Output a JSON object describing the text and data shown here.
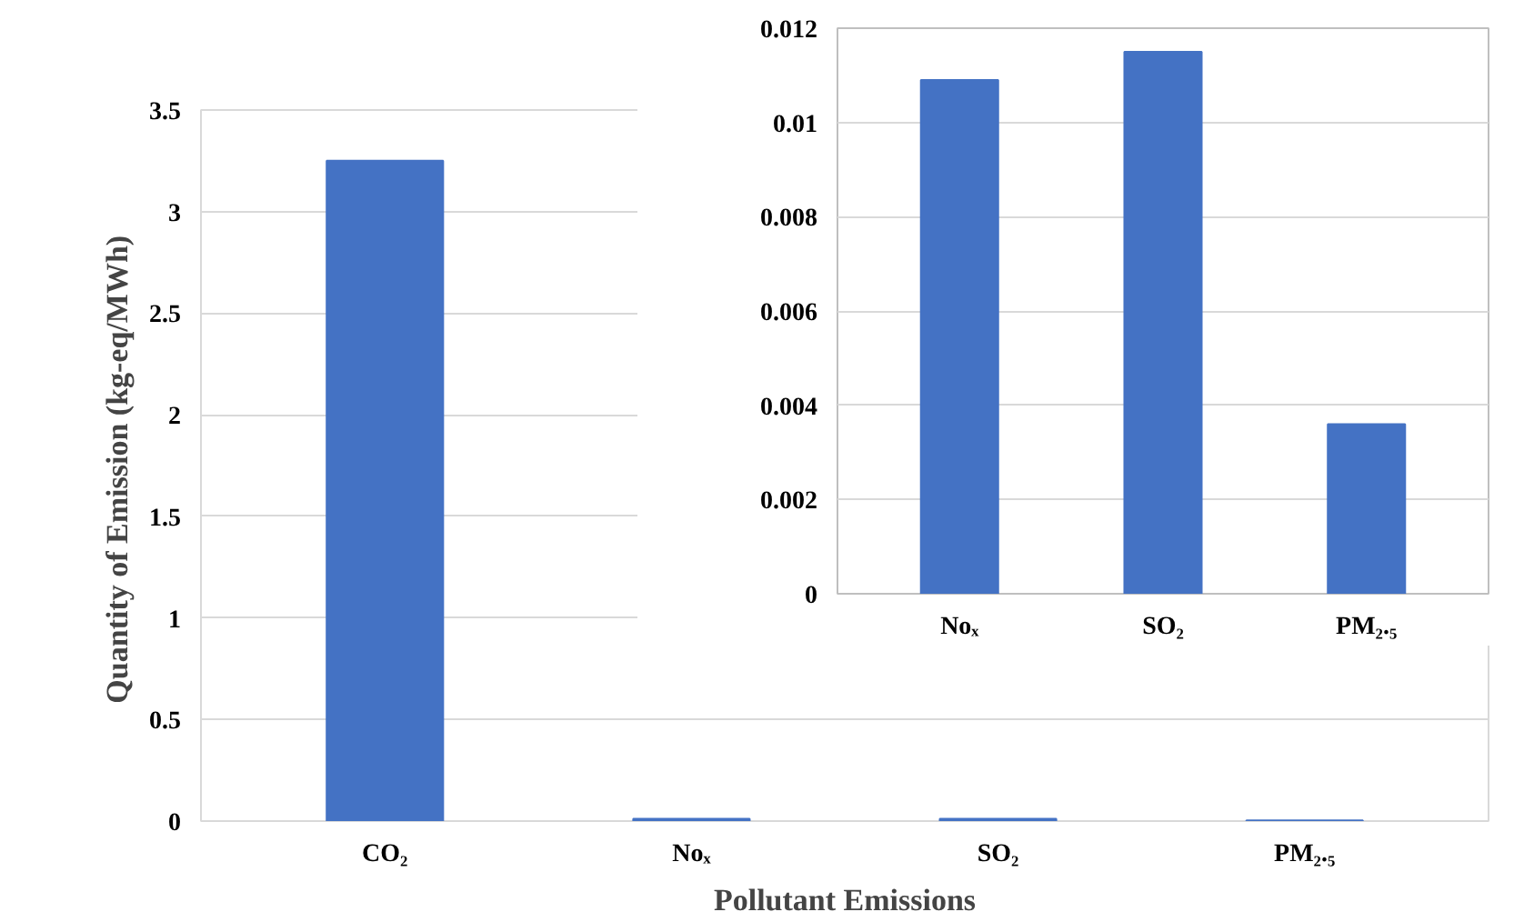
{
  "chart_data": [
    {
      "type": "bar",
      "xlabel": "Pollutant Emissions",
      "ylabel": "Quantity of Emission  (kg-eq/MWh)",
      "categories": [
        "CO₂",
        "Noₓ",
        "SO₂",
        "PM₂.₅"
      ],
      "values": [
        3.25,
        0.0109,
        0.0115,
        0.0036
      ],
      "color": "#4472c4",
      "ylim": [
        0,
        3.5
      ],
      "yticks": [
        0,
        0.5,
        1,
        1.5,
        2,
        2.5,
        3,
        3.5
      ],
      "grid": "y"
    },
    {
      "type": "bar",
      "categories": [
        "Noₓ",
        "SO₂",
        "PM₂.₅"
      ],
      "values": [
        0.0109,
        0.0115,
        0.0036
      ],
      "color": "#4472c4",
      "ylim": [
        0,
        0.012
      ],
      "yticks": [
        0,
        0.002,
        0.004,
        0.006,
        0.008,
        0.01,
        0.012
      ],
      "grid": "y"
    }
  ]
}
